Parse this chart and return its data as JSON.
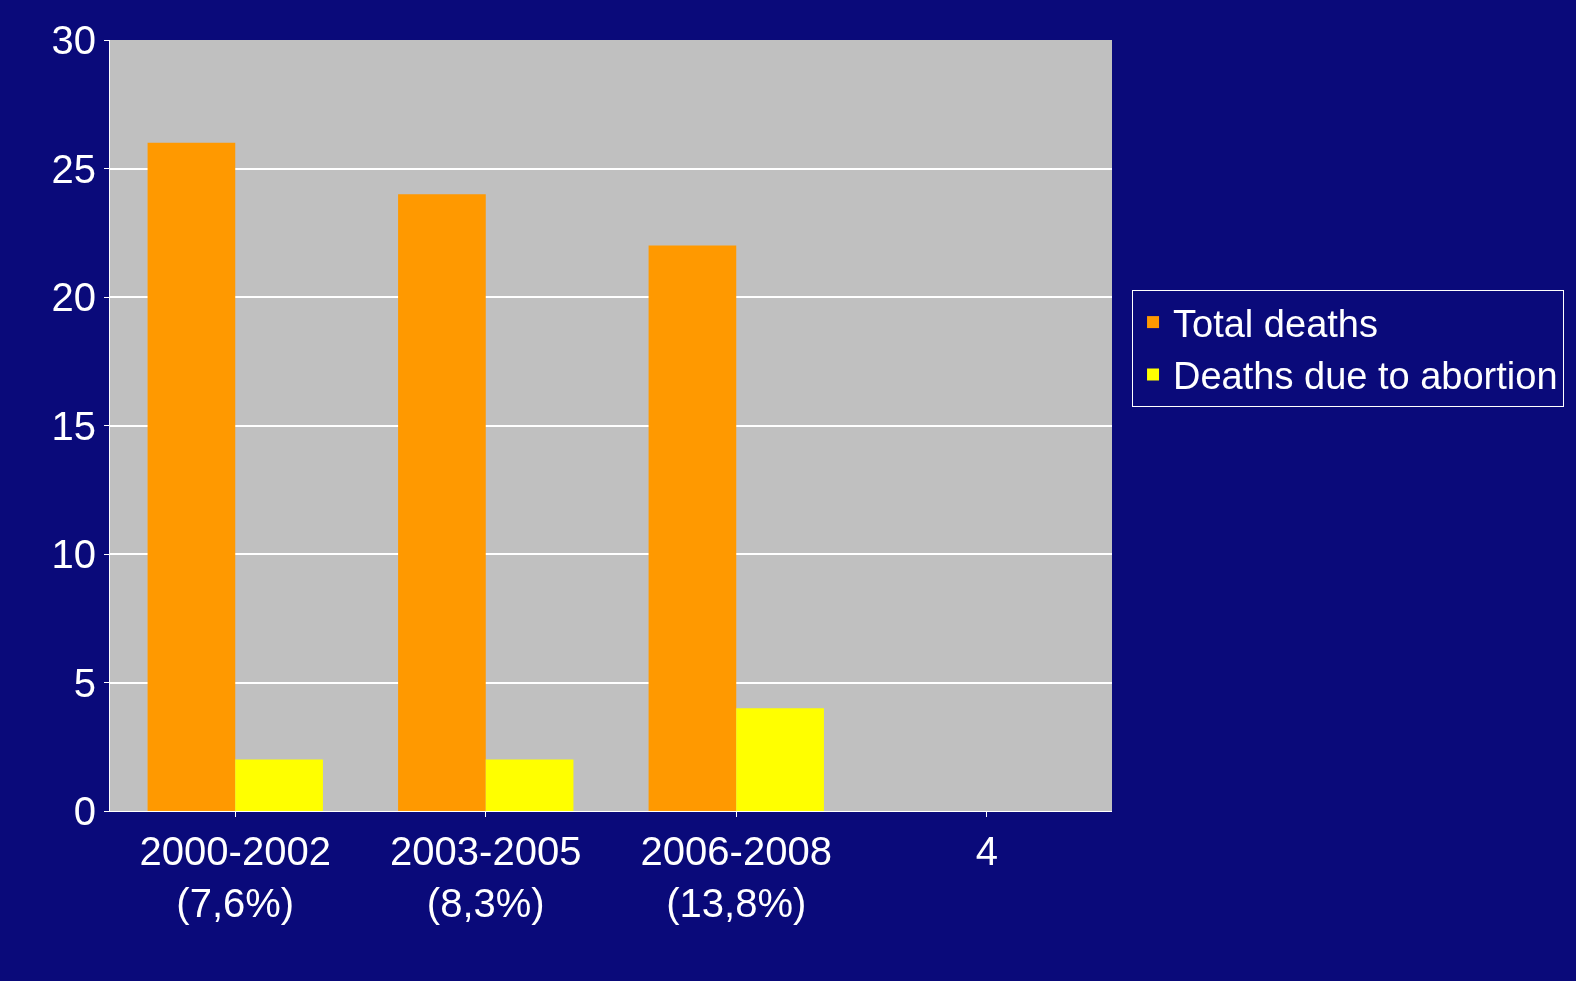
{
  "chart_data": {
    "type": "bar",
    "categories": [
      "2000-2002\n(7,6%)",
      "2003-2005\n(8,3%)",
      "2006-2008\n(13,8%)",
      "4"
    ],
    "series": [
      {
        "name": "Total deaths",
        "color": "#ff9900",
        "values": [
          26,
          24,
          22,
          null
        ]
      },
      {
        "name": "Deaths due to abortion",
        "color": "#ffff00",
        "values": [
          2,
          2,
          4,
          null
        ]
      }
    ],
    "ylim": [
      0,
      30
    ],
    "yticks": [
      0,
      5,
      10,
      15,
      20,
      25,
      30
    ],
    "grid": "y",
    "legend": "right"
  }
}
